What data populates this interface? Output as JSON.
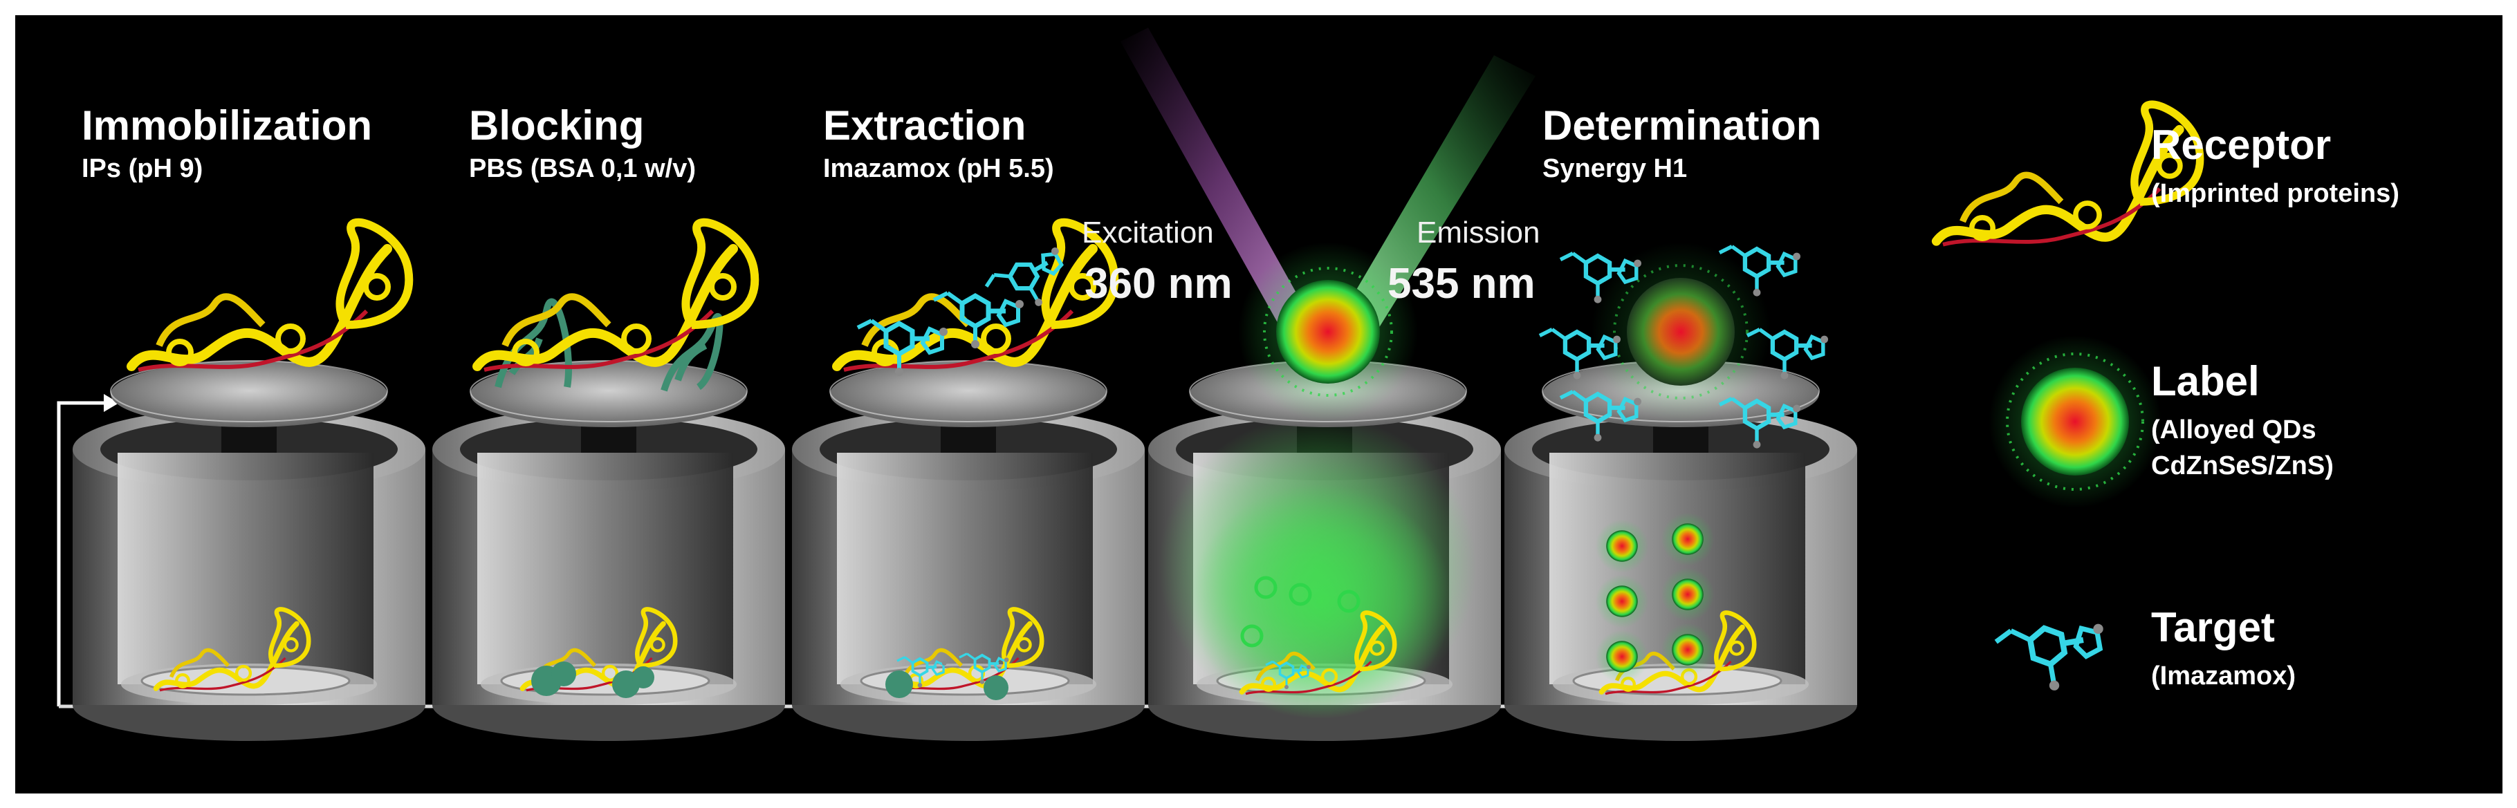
{
  "steps": [
    {
      "title": "Immobilization",
      "subtitle": "IPs (pH 9)"
    },
    {
      "title": "Blocking",
      "subtitle": "PBS (BSA 0,1 w/v)"
    },
    {
      "title": "Extraction",
      "subtitle": "Imazamox (pH 5.5)"
    },
    {
      "title": "Determination",
      "subtitle": "Synergy H1"
    }
  ],
  "excitation": {
    "label": "Excitation",
    "value": "360 nm"
  },
  "emission": {
    "label": "Emission",
    "value": "535 nm"
  },
  "legend": [
    {
      "title": "Receptor",
      "lines": [
        "(Imprinted proteins)"
      ]
    },
    {
      "title": "Label",
      "lines": [
        "(Alloyed QDs",
        "CdZnSeS/ZnS)"
      ]
    },
    {
      "title": "Target",
      "lines": [
        "(Imazamox)"
      ]
    }
  ],
  "colors": {
    "background": "#000000",
    "receptor": "#f5e000",
    "receptor_backbone": "#c0152a",
    "blocker": "#3f8f72",
    "target": "#36d6e6",
    "label_core": "#e8102a",
    "label_glow": "#2fd64a",
    "excitation_beam": "#b05cc0",
    "emission_beam": "#57d26a"
  },
  "icons": [
    "well-icon",
    "plate-disc-icon",
    "protein-icon",
    "quantum-dot-icon",
    "molecule-icon"
  ]
}
